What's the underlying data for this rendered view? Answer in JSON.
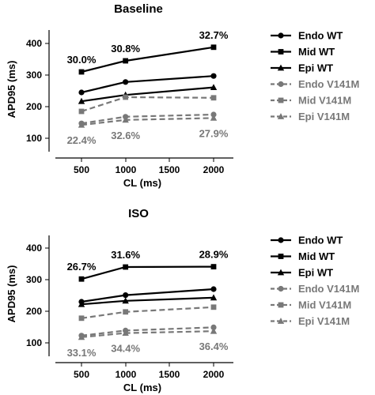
{
  "colors": {
    "wt": "#000000",
    "v141m": "#787878"
  },
  "chart_data": [
    {
      "type": "line",
      "title": "Baseline",
      "xlabel": "CL (ms)",
      "ylabel": "APD95 (ms)",
      "x": [
        500,
        1000,
        2000
      ],
      "xlim": [
        200,
        2300
      ],
      "ylim": [
        65,
        450
      ],
      "xticks": [
        "500",
        "1000",
        "1500",
        "2000"
      ],
      "yticks": [
        "100",
        "200",
        "300",
        "400"
      ],
      "grid": false,
      "legend_position": "right",
      "series": [
        {
          "name": "Endo WT",
          "values": [
            245,
            278,
            297
          ],
          "marker": "circle",
          "style": "solid",
          "color": "#000000"
        },
        {
          "name": "Mid WT",
          "values": [
            310,
            345,
            388
          ],
          "marker": "square",
          "style": "solid",
          "color": "#000000"
        },
        {
          "name": "Epi WT",
          "values": [
            217,
            237,
            261
          ],
          "marker": "triangle",
          "style": "solid",
          "color": "#000000"
        },
        {
          "name": "Endo V141M",
          "values": [
            147,
            168,
            175
          ],
          "marker": "circle",
          "style": "dashed",
          "color": "#787878"
        },
        {
          "name": "Mid V141M",
          "values": [
            185,
            230,
            228
          ],
          "marker": "square",
          "style": "dashed",
          "color": "#787878"
        },
        {
          "name": "Epi V141M",
          "values": [
            142,
            158,
            164
          ],
          "marker": "triangle",
          "style": "dashed",
          "color": "#787878"
        }
      ],
      "annotations_top": [
        {
          "x": 500,
          "text": "30.0%"
        },
        {
          "x": 1000,
          "text": "30.8%"
        },
        {
          "x": 2000,
          "text": "32.7%"
        }
      ],
      "annotations_bottom": [
        {
          "x": 500,
          "text": "22.4%"
        },
        {
          "x": 1000,
          "text": "32.6%"
        },
        {
          "x": 2000,
          "text": "27.9%"
        }
      ]
    },
    {
      "type": "line",
      "title": "ISO",
      "xlabel": "CL (ms)",
      "ylabel": "APD95 (ms)",
      "x": [
        500,
        1000,
        2000
      ],
      "xlim": [
        200,
        2300
      ],
      "ylim": [
        65,
        450
      ],
      "xticks": [
        "500",
        "1000",
        "1500",
        "2000"
      ],
      "yticks": [
        "100",
        "200",
        "300",
        "400"
      ],
      "grid": false,
      "legend_position": "right",
      "series": [
        {
          "name": "Endo WT",
          "values": [
            230,
            251,
            270
          ],
          "marker": "circle",
          "style": "solid",
          "color": "#000000"
        },
        {
          "name": "Mid WT",
          "values": [
            302,
            340,
            341
          ],
          "marker": "square",
          "style": "solid",
          "color": "#000000"
        },
        {
          "name": "Epi WT",
          "values": [
            222,
            233,
            243
          ],
          "marker": "triangle",
          "style": "solid",
          "color": "#000000"
        },
        {
          "name": "Endo V141M",
          "values": [
            123,
            139,
            149
          ],
          "marker": "circle",
          "style": "dashed",
          "color": "#787878"
        },
        {
          "name": "Mid V141M",
          "values": [
            178,
            198,
            213
          ],
          "marker": "square",
          "style": "dashed",
          "color": "#787878"
        },
        {
          "name": "Epi V141M",
          "values": [
            118,
            131,
            137
          ],
          "marker": "triangle",
          "style": "dashed",
          "color": "#787878"
        }
      ],
      "annotations_top": [
        {
          "x": 500,
          "text": "26.7%"
        },
        {
          "x": 1000,
          "text": "31.6%"
        },
        {
          "x": 2000,
          "text": "28.9%"
        }
      ],
      "annotations_bottom": [
        {
          "x": 500,
          "text": "33.1%"
        },
        {
          "x": 1000,
          "text": "34.4%"
        },
        {
          "x": 2000,
          "text": "36.4%"
        }
      ]
    }
  ]
}
